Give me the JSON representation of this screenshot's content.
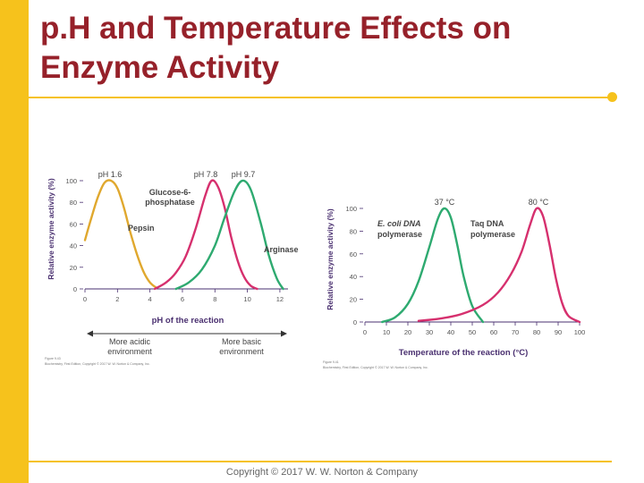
{
  "slide": {
    "title_line1": "p.H and Temperature Effects on",
    "title_line2": "Enzyme Activity",
    "copyright": "Copyright © 2017 W. W. Norton & Company",
    "colors": {
      "accent": "#f6c21c",
      "title": "#96212a",
      "pepsin": "#e0a82e",
      "glucose": "#d6306e",
      "arginase": "#2eaa70",
      "ecoli": "#2eaa70",
      "taq": "#d6306e",
      "axis_label": "#4a3070"
    }
  },
  "chart_data": [
    {
      "type": "line",
      "ylabel": "Relative enzyme activity (%)",
      "xlabel": "pH of the reaction",
      "xlim": [
        0,
        12.5
      ],
      "ylim": [
        0,
        100
      ],
      "xticks": [
        0,
        2,
        4,
        6,
        8,
        10,
        12
      ],
      "yticks": [
        0,
        20,
        40,
        60,
        80,
        100
      ],
      "series": [
        {
          "name": "Pepsin",
          "color": "#e0a82e",
          "x": [
            0,
            0.4,
            0.8,
            1.2,
            1.6,
            2.0,
            2.4,
            2.8,
            3.2,
            3.6,
            4.0,
            4.4
          ],
          "y": [
            45,
            66,
            85,
            98,
            100,
            93,
            75,
            52,
            32,
            16,
            6,
            1
          ]
        },
        {
          "name": "Glucose-6-phosphatase",
          "color": "#d6306e",
          "x": [
            4.3,
            5.0,
            5.6,
            6.2,
            6.8,
            7.4,
            7.8,
            8.2,
            8.6,
            9.0,
            9.4,
            9.8,
            10.2,
            10.6
          ],
          "y": [
            0,
            6,
            15,
            30,
            55,
            86,
            100,
            94,
            75,
            48,
            26,
            11,
            3,
            0
          ]
        },
        {
          "name": "Arginase",
          "color": "#2eaa70",
          "x": [
            5.6,
            6.4,
            7.2,
            8.0,
            8.6,
            9.2,
            9.7,
            10.2,
            10.8,
            11.3,
            11.8,
            12.2
          ],
          "y": [
            0,
            6,
            18,
            40,
            66,
            90,
            100,
            92,
            62,
            32,
            10,
            0
          ]
        }
      ],
      "peak_labels": [
        "pH 1.6",
        "pH 7.8",
        "pH 9.7"
      ],
      "curve_labels": {
        "pepsin": "Pepsin",
        "glucose_line1": "Glucose-6-",
        "glucose_line2": "phosphatase",
        "arginase": "Arginase"
      },
      "direction": {
        "acidic_line1": "More acidic",
        "acidic_line2": "environment",
        "basic_line1": "More basic",
        "basic_line2": "environment"
      },
      "caption_line1": "Figure 9.43",
      "caption_line2": "Biochemistry, First Edition, Copyright © 2017 W. W. Norton & Company, Inc."
    },
    {
      "type": "line",
      "ylabel": "Relative enzyme activity (%)",
      "xlabel": "Temperature of the reaction (°C)",
      "xlim": [
        0,
        100
      ],
      "ylim": [
        0,
        100
      ],
      "xticks": [
        0,
        10,
        20,
        30,
        40,
        50,
        60,
        70,
        80,
        90,
        100
      ],
      "yticks": [
        0,
        20,
        40,
        60,
        80,
        100
      ],
      "series": [
        {
          "name": "E. coli DNA polymerase",
          "color": "#2eaa70",
          "x": [
            8,
            14,
            20,
            25,
            30,
            34,
            37,
            40,
            43,
            46,
            50,
            55
          ],
          "y": [
            0,
            4,
            16,
            36,
            66,
            91,
            100,
            92,
            68,
            40,
            14,
            0
          ]
        },
        {
          "name": "Taq DNA polymerase",
          "color": "#d6306e",
          "x": [
            25,
            35,
            45,
            55,
            62,
            68,
            73,
            77,
            80,
            83,
            86,
            89,
            92,
            95,
            100
          ],
          "y": [
            1,
            3,
            7,
            15,
            26,
            42,
            62,
            86,
            100,
            93,
            68,
            38,
            16,
            5,
            0
          ]
        }
      ],
      "peak_labels": [
        "37 °C",
        "80 °C"
      ],
      "curve_labels": {
        "ecoli_line1": "E. coli DNA",
        "ecoli_line2": "polymerase",
        "taq_line1": "Taq DNA",
        "taq_line2": "polymerase"
      },
      "caption_line1": "Figure 9.41",
      "caption_line2": "Biochemistry, First Edition, Copyright © 2017 W. W. Norton & Company, Inc."
    }
  ]
}
